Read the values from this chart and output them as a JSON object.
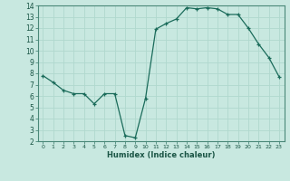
{
  "x": [
    0,
    1,
    2,
    3,
    4,
    5,
    6,
    7,
    8,
    9,
    10,
    11,
    12,
    13,
    14,
    15,
    16,
    17,
    18,
    19,
    20,
    21,
    22,
    23
  ],
  "y": [
    7.8,
    7.2,
    6.5,
    6.2,
    6.2,
    5.3,
    6.2,
    6.2,
    2.5,
    2.3,
    5.8,
    11.9,
    12.4,
    12.8,
    13.8,
    13.7,
    13.8,
    13.7,
    13.2,
    13.2,
    12.0,
    10.6,
    9.4,
    7.7
  ],
  "xlabel": "Humidex (Indice chaleur)",
  "ylim": [
    2,
    14
  ],
  "xlim": [
    -0.5,
    23.5
  ],
  "yticks": [
    2,
    3,
    4,
    5,
    6,
    7,
    8,
    9,
    10,
    11,
    12,
    13,
    14
  ],
  "xticks": [
    0,
    1,
    2,
    3,
    4,
    5,
    6,
    7,
    8,
    9,
    10,
    11,
    12,
    13,
    14,
    15,
    16,
    17,
    18,
    19,
    20,
    21,
    22,
    23
  ],
  "line_color": "#1a6b5a",
  "marker": "+",
  "bg_color": "#c8e8e0",
  "grid_color": "#b0d8ce",
  "spine_color": "#4a8878",
  "tick_color": "#1a5545"
}
